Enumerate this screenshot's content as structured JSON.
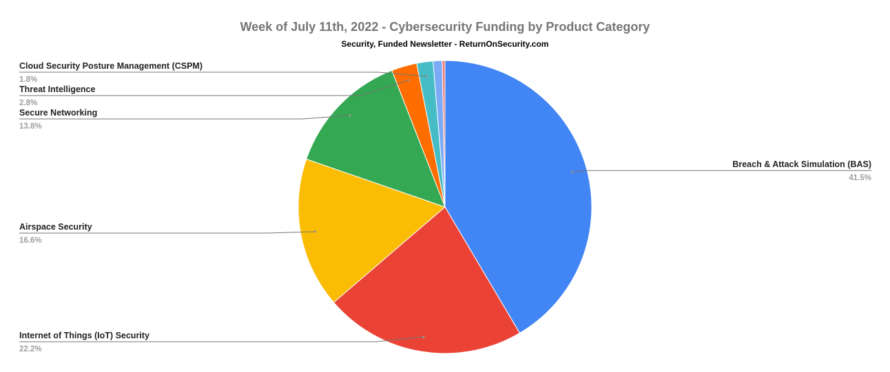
{
  "chart_data": {
    "type": "pie",
    "title": "Week of July 11th, 2022 - Cybersecurity Funding by Product Category",
    "subtitle": "Security, Funded Newsletter - ReturnOnSecurity.com",
    "slices": [
      {
        "label": "Breach & Attack Simulation (BAS)",
        "value": 41.5,
        "value_label": "41.5%",
        "color": "#4285f4"
      },
      {
        "label": "Internet of Things (IoT) Security",
        "value": 22.2,
        "value_label": "22.2%",
        "color": "#ea4335"
      },
      {
        "label": "Airspace Security",
        "value": 16.6,
        "value_label": "16.6%",
        "color": "#fbbc04"
      },
      {
        "label": "Secure Networking",
        "value": 13.8,
        "value_label": "13.8%",
        "color": "#34a853"
      },
      {
        "label": "Threat Intelligence",
        "value": 2.8,
        "value_label": "2.8%",
        "color": "#ff6d01"
      },
      {
        "label": "Cloud Security Posture Management (CSPM)",
        "value": 1.8,
        "value_label": "1.8%",
        "color": "#46bdc6"
      },
      {
        "label": "",
        "value": 1.0,
        "value_label": "",
        "color": "#7baaf7"
      },
      {
        "label": "",
        "value": 0.3,
        "value_label": "",
        "color": "#f07b72"
      }
    ],
    "legend": "none"
  }
}
